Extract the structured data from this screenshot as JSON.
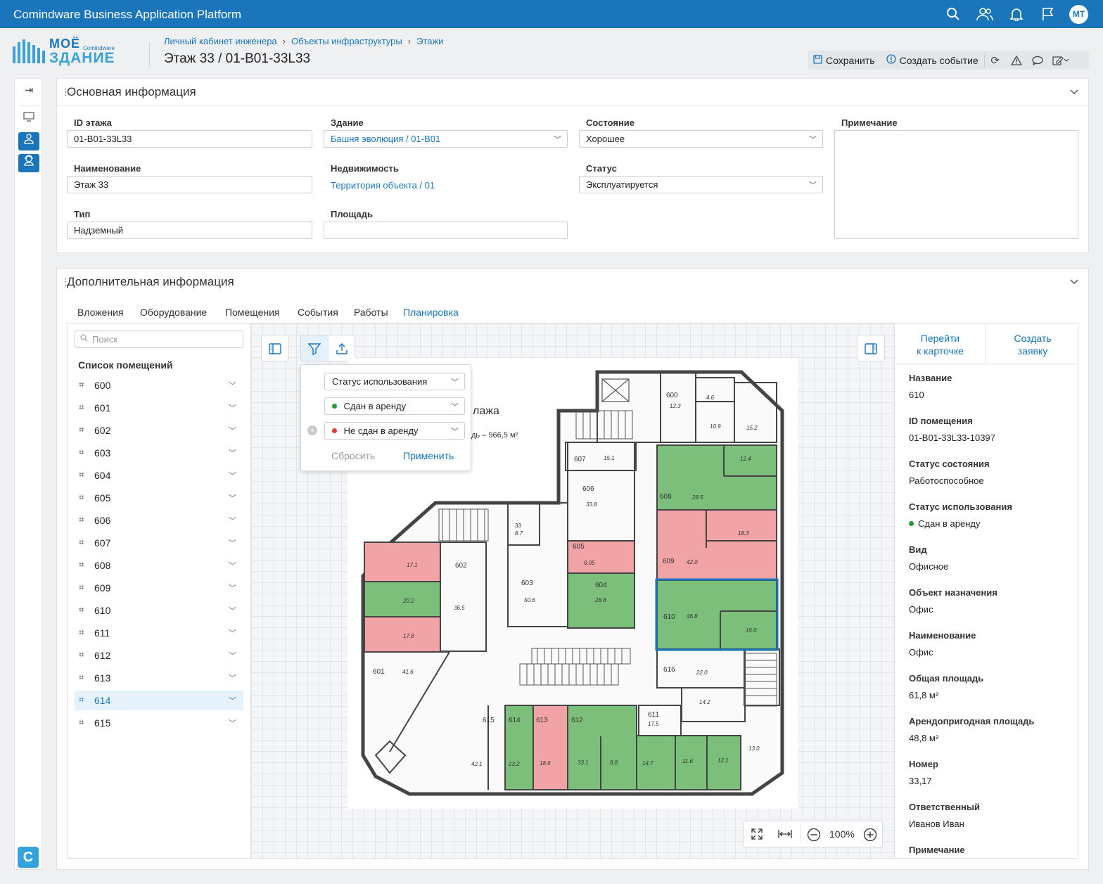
{
  "app": {
    "title": "Comindware Business Application Platform",
    "user_initials": "МТ"
  },
  "topbar_icons": [
    "search-icon",
    "users-icon",
    "bell-icon",
    "flag-icon"
  ],
  "logo": {
    "line1": "МОЁ",
    "line2": "ЗДАНИЕ",
    "brand": "Comindware"
  },
  "breadcrumb": [
    "Личный кабинет инженера",
    "Объекты инфраструктуры",
    "Этажи"
  ],
  "page_title": "Этаж 33 / 01-B01-33L33",
  "toolbar": {
    "save": "Сохранить",
    "create_event": "Создать событие"
  },
  "main_info": {
    "title": "Основная информация",
    "floor_id_label": "ID этажа",
    "floor_id": "01-B01-33L33",
    "building_label": "Здание",
    "building": "Башня эволюция / 01-B01",
    "condition_label": "Состояние",
    "condition": "Хорошее",
    "note_label": "Примечание",
    "name_label": "Наименование",
    "name": "Этаж 33",
    "realty_label": "Недвижимость",
    "realty": "Территория объекта / 01",
    "status_label": "Статус",
    "status": "Эксплуатируется",
    "type_label": "Тип",
    "type": "Надземный",
    "area_label": "Площадь",
    "area": ""
  },
  "extra_info": {
    "title": "Дополнительная информация",
    "tabs": [
      "Вложения",
      "Оборудование",
      "Помещения",
      "События",
      "Работы",
      "Планировка"
    ],
    "active_tab": "Планировка"
  },
  "room_list": {
    "search_placeholder": "Поиск",
    "title": "Список помещений",
    "rooms": [
      "600",
      "601",
      "602",
      "603",
      "604",
      "605",
      "606",
      "607",
      "608",
      "609",
      "610",
      "611",
      "612",
      "613",
      "614",
      "615"
    ],
    "selected": "614"
  },
  "filter": {
    "field": "Статус использования",
    "option1": "Сдан в аренду",
    "option2": "Не сдан в аренду",
    "reset": "Сбросить",
    "apply": "Применить",
    "rented_color": "#1fa32c",
    "not_rented_color": "#e53935"
  },
  "plan": {
    "heading_fragment": "лажа",
    "area_fragment": "дь – 966,5 м²",
    "labels": [
      "600",
      "12.3",
      "4.6",
      "10.9",
      "15.2",
      "607",
      "15.1",
      "12.4",
      "606",
      "33.8",
      "608",
      "28.5",
      "33",
      "8.7",
      "605",
      "6.05",
      "18.3",
      "609",
      "42.0",
      "17.1",
      "602",
      "603",
      "604",
      "28.8",
      "20.2",
      "36.5",
      "50.6",
      "610",
      "46.8",
      "15.0",
      "17.8",
      "616",
      "22.0",
      "601",
      "41.6",
      "14.2",
      "615",
      "614",
      "613",
      "612",
      "611",
      "17.5",
      "42.1",
      "23.2",
      "18.6",
      "33.1",
      "8.8",
      "14.7",
      "11.6",
      "12.1",
      "13.0"
    ],
    "colors": {
      "rented": "#7bbf7b",
      "not_rented": "#f2a3a6",
      "selected_outline": "#1a75bb"
    }
  },
  "zoom": {
    "level": "100%"
  },
  "detail": {
    "go_to_card": [
      "Перейти",
      "к карточке"
    ],
    "create_request": [
      "Создать",
      "заявку"
    ],
    "fields": [
      {
        "label": "Название",
        "value": "610"
      },
      {
        "label": "ID помещения",
        "value": "01-B01-33L33-10397"
      },
      {
        "label": "Статус состояния",
        "value": "Работоспособное"
      },
      {
        "label": "Статус использования",
        "value": "Сдан в аренду"
      },
      {
        "label": "Вид",
        "value": "Офисное"
      },
      {
        "label": "Объект назначения",
        "value": "Офис"
      },
      {
        "label": "Наименование",
        "value": "Офис"
      },
      {
        "label": "Общая площадь",
        "value": "61,8 м²"
      },
      {
        "label": "Арендопригодная площадь",
        "value": "48,8 м²"
      },
      {
        "label": "Номер",
        "value": "33,17"
      },
      {
        "label": "Ответственный",
        "value": "Иванов Иван"
      },
      {
        "label": "Примечание",
        "value": ""
      }
    ]
  }
}
